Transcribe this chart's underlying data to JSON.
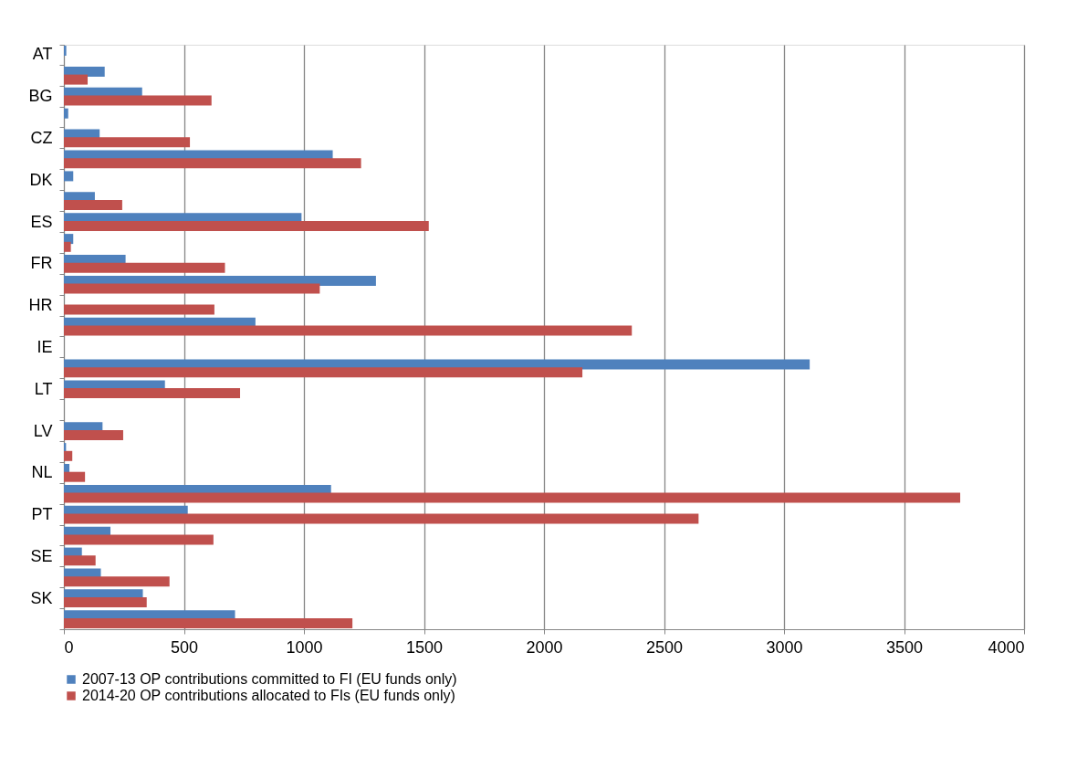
{
  "chart_data": {
    "type": "bar",
    "orientation": "horizontal",
    "categories": [
      "AT",
      null,
      "BG",
      null,
      "CZ",
      null,
      "DK",
      null,
      "ES",
      null,
      "FR",
      null,
      "HR",
      null,
      "IE",
      null,
      "LT",
      null,
      "LV",
      null,
      "NL",
      null,
      "PT",
      null,
      "SE",
      null,
      "SK",
      null
    ],
    "series": [
      {
        "name": "2007-13 OP contributions committed to FI (EU funds only)",
        "color": "#4f81bd",
        "values": [
          10,
          170,
          326,
          18,
          149,
          1120,
          39,
          129,
          990,
          39,
          257,
          1300,
          null,
          798,
          null,
          3107,
          421,
          null,
          161,
          9,
          23,
          1113,
          516,
          194,
          75,
          154,
          329,
          713
        ]
      },
      {
        "name": "2014-20 OP contributions allocated to FIs (EU funds only)",
        "color": "#c0504d",
        "values": [
          null,
          99,
          615,
          null,
          525,
          1238,
          null,
          243,
          1520,
          29,
          671,
          1066,
          627,
          2366,
          null,
          2160,
          734,
          null,
          247,
          35,
          88,
          3734,
          2644,
          623,
          132,
          440,
          345,
          1202
        ]
      }
    ],
    "xlim": [
      0,
      4000
    ],
    "xticks": [
      0,
      500,
      1000,
      1500,
      2000,
      2500,
      3000,
      3500,
      4000
    ],
    "grid": "x",
    "legend": "bottom"
  }
}
